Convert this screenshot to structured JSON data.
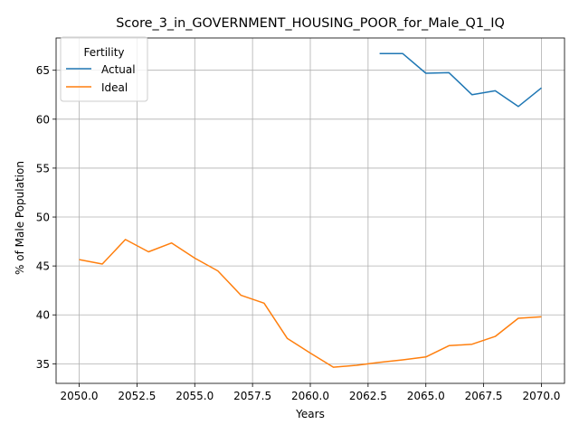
{
  "chart_data": {
    "type": "line",
    "title": "Score_3_in_GOVERNMENT_HOUSING_POOR_for_Male_Q1_IQ",
    "xlabel": "Years",
    "ylabel": "% of Male Population",
    "xlim": [
      2049.0,
      2071.0
    ],
    "ylim": [
      33.0,
      68.3
    ],
    "xticks": [
      2050.0,
      2052.5,
      2055.0,
      2057.5,
      2060.0,
      2062.5,
      2065.0,
      2067.5,
      2070.0
    ],
    "xtick_labels": [
      "2050.0",
      "2052.5",
      "2055.0",
      "2057.5",
      "2060.0",
      "2062.5",
      "2065.0",
      "2067.5",
      "2070.0"
    ],
    "yticks": [
      35,
      40,
      45,
      50,
      55,
      60,
      65
    ],
    "ytick_labels": [
      "35",
      "40",
      "45",
      "50",
      "55",
      "60",
      "65"
    ],
    "grid": true,
    "legend": {
      "title": "Fertility",
      "placement": "top-left"
    },
    "series": [
      {
        "name": "Actual",
        "color": "#1f77b4",
        "x": [
          2063,
          2064,
          2065,
          2066,
          2067,
          2068,
          2069,
          2070
        ],
        "y": [
          66.7,
          66.7,
          64.7,
          64.75,
          62.5,
          62.9,
          61.3,
          63.2
        ]
      },
      {
        "name": "Ideal",
        "color": "#ff7f0e",
        "x": [
          2050,
          2051,
          2052,
          2053,
          2054,
          2055,
          2056,
          2057,
          2058,
          2059,
          2060,
          2061,
          2062,
          2063,
          2064,
          2065,
          2066,
          2067,
          2068,
          2069,
          2070
        ],
        "y": [
          45.65,
          45.2,
          47.7,
          46.45,
          47.35,
          45.8,
          44.5,
          42.0,
          41.2,
          37.6,
          36.1,
          34.65,
          34.85,
          35.15,
          35.4,
          35.7,
          36.85,
          37.0,
          37.8,
          39.65,
          39.8
        ]
      }
    ]
  }
}
